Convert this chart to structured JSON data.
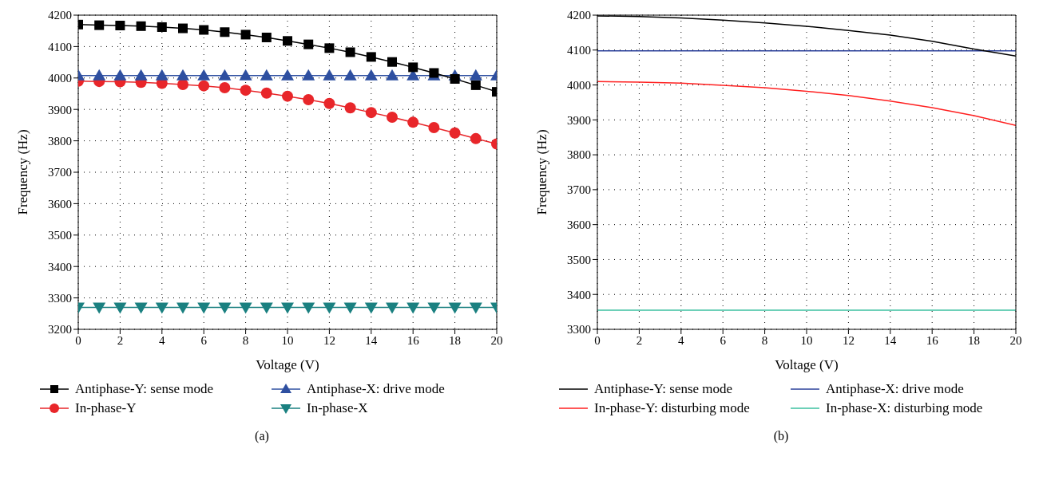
{
  "chart_data": [
    {
      "type": "line",
      "xlabel": "Voltage (V)",
      "ylabel": "Frequency (Hz)",
      "annotations": [
        "(a)"
      ],
      "x": [
        0,
        1,
        2,
        3,
        4,
        5,
        6,
        7,
        8,
        9,
        10,
        11,
        12,
        13,
        14,
        15,
        16,
        17,
        18,
        19,
        20
      ],
      "xlim": [
        0,
        20
      ],
      "xticks": [
        0,
        2,
        4,
        6,
        8,
        10,
        12,
        14,
        16,
        18,
        20
      ],
      "ylim": [
        3200,
        4200
      ],
      "yticks": [
        3200,
        3300,
        3400,
        3500,
        3600,
        3700,
        3800,
        3900,
        4000,
        4100,
        4200
      ],
      "grid": true,
      "legend": "bottom",
      "series": [
        {
          "name": "Antiphase-Y: sense mode",
          "color": "#000000",
          "marker": "square",
          "values": [
            4170,
            4168,
            4167,
            4165,
            4162,
            4158,
            4153,
            4146,
            4138,
            4129,
            4118,
            4107,
            4095,
            4082,
            4067,
            4051,
            4034,
            4016,
            3997,
            3977,
            3956
          ]
        },
        {
          "name": "Antiphase-X: drive mode",
          "color": "#2e4fa0",
          "marker": "triangle",
          "values": [
            4008,
            4008,
            4008,
            4008,
            4008,
            4008,
            4008,
            4008,
            4008,
            4008,
            4008,
            4008,
            4008,
            4008,
            4008,
            4008,
            4008,
            4008,
            4008,
            4008,
            4008
          ]
        },
        {
          "name": "In-phase-Y",
          "color": "#e8262a",
          "marker": "circle",
          "values": [
            3990,
            3989,
            3988,
            3986,
            3983,
            3979,
            3975,
            3969,
            3961,
            3952,
            3942,
            3931,
            3919,
            3905,
            3890,
            3875,
            3859,
            3842,
            3825,
            3807,
            3790
          ]
        },
        {
          "name": "In-phase-X",
          "color": "#1a8080",
          "marker": "triangle-down",
          "values": [
            3270,
            3270,
            3270,
            3270,
            3270,
            3270,
            3270,
            3270,
            3270,
            3270,
            3270,
            3270,
            3270,
            3270,
            3270,
            3270,
            3270,
            3270,
            3270,
            3270,
            3270
          ]
        }
      ]
    },
    {
      "type": "line",
      "xlabel": "Voltage (V)",
      "ylabel": "Frequency (Hz)",
      "annotations": [
        "(b)"
      ],
      "x": [
        0,
        2,
        4,
        6,
        8,
        10,
        12,
        14,
        16,
        18,
        20
      ],
      "xlim": [
        0,
        20
      ],
      "xticks": [
        0,
        2,
        4,
        6,
        8,
        10,
        12,
        14,
        16,
        18,
        20
      ],
      "ylim": [
        3300,
        4200
      ],
      "yticks": [
        3300,
        3400,
        3500,
        3600,
        3700,
        3800,
        3900,
        4000,
        4100,
        4200
      ],
      "grid": true,
      "legend": "bottom",
      "marker": "none",
      "series": [
        {
          "name": "Antiphase-Y: sense mode",
          "color": "#000000",
          "values": [
            4198,
            4196,
            4192,
            4186,
            4178,
            4168,
            4156,
            4143,
            4125,
            4103,
            4083
          ]
        },
        {
          "name": "Antiphase-X: drive mode",
          "color": "#2a3f9a",
          "values": [
            4098,
            4098,
            4098,
            4098,
            4098,
            4098,
            4098,
            4098,
            4098,
            4098,
            4098
          ]
        },
        {
          "name": "In-phase-Y: disturbing mode",
          "color": "#ff2020",
          "values": [
            4010,
            4008,
            4005,
            3999,
            3992,
            3982,
            3970,
            3954,
            3935,
            3912,
            3884
          ]
        },
        {
          "name": "In-phase-X: disturbing mode",
          "color": "#3cc0a0",
          "values": [
            3355,
            3355,
            3355,
            3355,
            3355,
            3355,
            3355,
            3355,
            3355,
            3355,
            3355
          ]
        }
      ]
    }
  ]
}
